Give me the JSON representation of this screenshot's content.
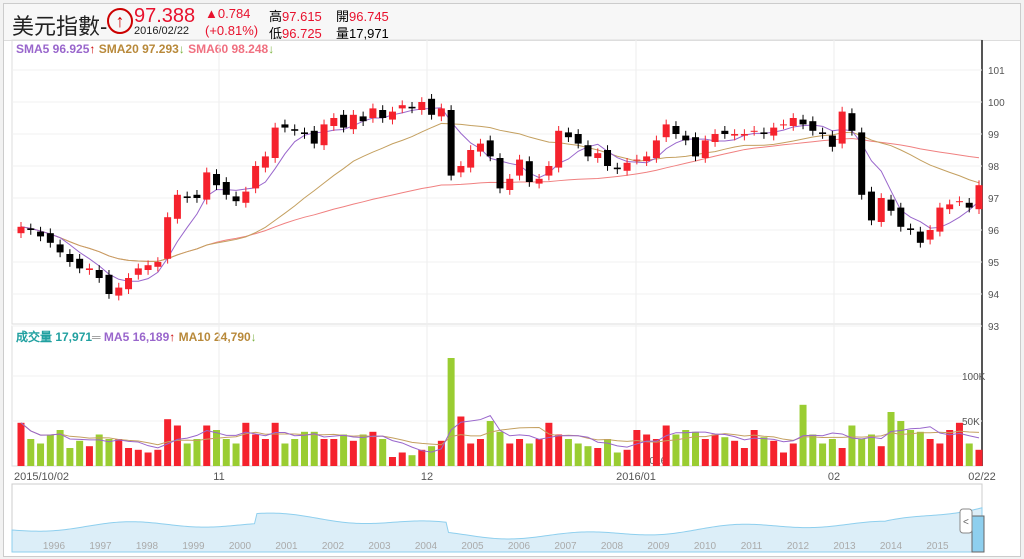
{
  "header": {
    "title": "美元指數-",
    "price": "97.388",
    "date": "2016/02/22",
    "change": "▲0.784",
    "change_pct": "(+0.81%)",
    "high_label": "高",
    "high": "97.615",
    "low_label": "低",
    "low": "96.725",
    "open_label": "開",
    "open": "96.745",
    "vol_label": "量",
    "vol": "17,971"
  },
  "legend": {
    "sma5": "SMA5 96.925",
    "sma20": "SMA20 97.293",
    "sma60": "SMA60 98.248",
    "up": "↑",
    "down": "↓"
  },
  "vol_legend": {
    "label": "成交量 17,971",
    "eq": "═",
    "ma5": "MA5 16,189",
    "ma10": "MA10 24,790",
    "up": "↑",
    "down": "↓"
  },
  "colors": {
    "up": "#f5222d",
    "down": "#000000",
    "vol_up": "#f5222d",
    "vol_down": "#9acd32",
    "sma5": "#9966cc",
    "sma20": "#c4a060",
    "sma60": "#f08080",
    "nav": "#8ecfee"
  },
  "chart_data": {
    "type": "candlestick",
    "price_ticks": [
      "101",
      "100",
      "99",
      "98",
      "97",
      "96",
      "95",
      "94",
      "93"
    ],
    "price_range": [
      93,
      101.5
    ],
    "volume_ticks": [
      "100K",
      "50K"
    ],
    "volume_range": [
      0,
      140
    ],
    "x_labels": [
      "2015/10/02",
      "11",
      "12",
      "2016/01",
      "02",
      "02/22"
    ],
    "inner_label": "2016",
    "closes": [
      96.1,
      96.0,
      95.8,
      95.6,
      95.3,
      95.0,
      94.8,
      94.8,
      94.5,
      94.0,
      94.2,
      94.5,
      94.8,
      94.9,
      95.0,
      96.4,
      97.1,
      97.0,
      97.0,
      97.8,
      97.4,
      97.1,
      96.9,
      97.2,
      98.0,
      98.3,
      99.2,
      99.2,
      99.1,
      99.0,
      98.7,
      99.3,
      99.5,
      99.2,
      99.6,
      99.4,
      99.8,
      99.5,
      99.7,
      99.9,
      99.8,
      100.0,
      99.6,
      99.8,
      97.7,
      98.0,
      98.5,
      98.7,
      98.3,
      97.3,
      97.6,
      98.2,
      97.5,
      97.6,
      98.0,
      99.1,
      98.9,
      98.7,
      98.3,
      98.4,
      98.0,
      97.9,
      98.1,
      98.2,
      98.3,
      98.8,
      99.3,
      99.0,
      98.8,
      98.3,
      98.8,
      99.0,
      99.0,
      99.0,
      99.0,
      99.1,
      99.0,
      99.2,
      99.3,
      99.5,
      99.3,
      99.1,
      99.0,
      98.6,
      99.7,
      99.1,
      97.1,
      96.3,
      97.0,
      96.6,
      96.1,
      96.0,
      95.6,
      96.0,
      96.7,
      96.8,
      96.9,
      96.7,
      97.4
    ],
    "volumes_k": [
      48,
      30,
      25,
      35,
      40,
      20,
      28,
      22,
      35,
      30,
      30,
      20,
      18,
      15,
      18,
      52,
      45,
      25,
      30,
      45,
      40,
      30,
      25,
      48,
      35,
      30,
      48,
      25,
      30,
      38,
      38,
      30,
      30,
      35,
      28,
      35,
      38,
      30,
      10,
      15,
      12,
      18,
      22,
      28,
      120,
      55,
      25,
      30,
      50,
      38,
      25,
      30,
      25,
      30,
      48,
      35,
      30,
      25,
      22,
      20,
      30,
      15,
      18,
      40,
      35,
      30,
      45,
      35,
      40,
      38,
      30,
      35,
      32,
      28,
      20,
      40,
      32,
      28,
      15,
      25,
      68,
      35,
      25,
      30,
      20,
      45,
      30,
      35,
      22,
      60,
      50,
      40,
      38,
      30,
      25,
      40,
      48,
      25,
      18
    ],
    "navigator_years": [
      "1996",
      "1997",
      "1998",
      "1999",
      "2000",
      "2001",
      "2002",
      "2003",
      "2004",
      "2005",
      "2006",
      "2007",
      "2008",
      "2009",
      "2010",
      "2011",
      "2012",
      "2013",
      "2014",
      "2015"
    ]
  }
}
